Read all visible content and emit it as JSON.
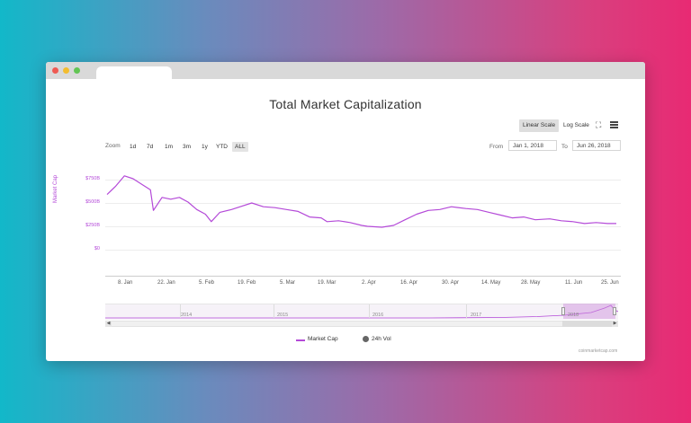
{
  "window": {
    "controls": [
      "close",
      "minimize",
      "maximize"
    ]
  },
  "chart": {
    "title": "Total Market Capitalization",
    "scale_buttons": [
      {
        "label": "Linear Scale",
        "active": true
      },
      {
        "label": "Log Scale",
        "active": false
      }
    ],
    "icons": [
      "fullscreen-icon",
      "menu-icon"
    ],
    "zoom": {
      "label": "Zoom",
      "options": [
        "1d",
        "7d",
        "1m",
        "3m",
        "1y",
        "YTD",
        "ALL"
      ]
    },
    "range": {
      "from_label": "From",
      "from_value": "Jan 1, 2018",
      "to_label": "To",
      "to_value": "Jun 26, 2018"
    },
    "y_axis_label": "Market Cap",
    "y_ticks": [
      "$750B",
      "$500B",
      "$250B",
      "$0"
    ],
    "x_ticks": [
      "8. Jan",
      "22. Jan",
      "5. Feb",
      "19. Feb",
      "5. Mar",
      "19. Mar",
      "2. Apr",
      "16. Apr",
      "30. Apr",
      "14. May",
      "28. May",
      "11. Jun",
      "25. Jun"
    ],
    "navigator_years": [
      "2014",
      "2015",
      "2016",
      "2017",
      "2018"
    ],
    "legend": [
      {
        "label": "Market Cap",
        "color": "#b44ad8"
      },
      {
        "label": "24h Vol",
        "color": "#666666"
      }
    ],
    "credit": "coinmarketcap.com",
    "colors": {
      "series": "#b44ad8",
      "accent": "#d8407f"
    }
  },
  "chart_data": {
    "type": "line",
    "title": "Total Market Capitalization",
    "ylabel": "Market Cap",
    "ylim": [
      0,
      850
    ],
    "y_unit": "$B",
    "x": [
      "2018-01-01",
      "2018-01-04",
      "2018-01-07",
      "2018-01-10",
      "2018-01-13",
      "2018-01-16",
      "2018-01-17",
      "2018-01-20",
      "2018-01-23",
      "2018-01-26",
      "2018-01-29",
      "2018-02-01",
      "2018-02-04",
      "2018-02-06",
      "2018-02-09",
      "2018-02-13",
      "2018-02-16",
      "2018-02-20",
      "2018-02-24",
      "2018-02-28",
      "2018-03-04",
      "2018-03-08",
      "2018-03-12",
      "2018-03-16",
      "2018-03-18",
      "2018-03-22",
      "2018-03-26",
      "2018-03-30",
      "2018-04-01",
      "2018-04-06",
      "2018-04-10",
      "2018-04-14",
      "2018-04-18",
      "2018-04-22",
      "2018-04-26",
      "2018-04-30",
      "2018-05-05",
      "2018-05-09",
      "2018-05-13",
      "2018-05-17",
      "2018-05-21",
      "2018-05-25",
      "2018-05-29",
      "2018-06-03",
      "2018-06-07",
      "2018-06-11",
      "2018-06-15",
      "2018-06-19",
      "2018-06-23",
      "2018-06-26"
    ],
    "series": [
      {
        "name": "Market Cap",
        "values": [
          590,
          680,
          790,
          760,
          700,
          640,
          420,
          560,
          540,
          560,
          510,
          430,
          380,
          300,
          400,
          430,
          460,
          500,
          460,
          450,
          430,
          410,
          350,
          340,
          300,
          310,
          290,
          260,
          250,
          240,
          260,
          320,
          380,
          420,
          430,
          460,
          440,
          430,
          400,
          370,
          340,
          350,
          320,
          330,
          310,
          300,
          280,
          290,
          280,
          280
        ]
      }
    ]
  }
}
